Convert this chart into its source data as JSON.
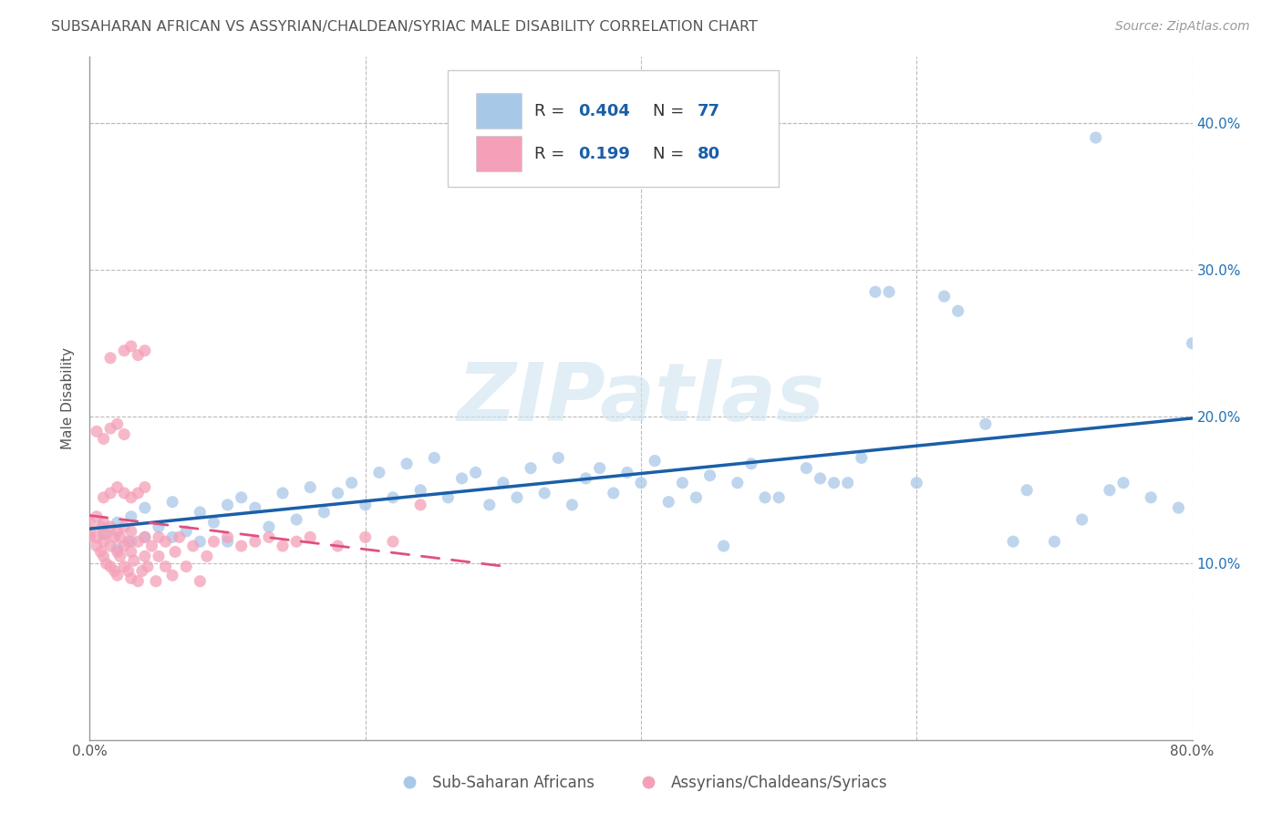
{
  "title": "SUBSAHARAN AFRICAN VS ASSYRIAN/CHALDEAN/SYRIAC MALE DISABILITY CORRELATION CHART",
  "source": "Source: ZipAtlas.com",
  "ylabel": "Male Disability",
  "xlim": [
    0.0,
    0.8
  ],
  "ylim": [
    -0.02,
    0.445
  ],
  "blue_color": "#a8c8e8",
  "pink_color": "#f4a0b8",
  "blue_line_color": "#1a5fa8",
  "pink_line_color": "#e05080",
  "R_blue": 0.404,
  "N_blue": 77,
  "R_pink": 0.199,
  "N_pink": 80,
  "legend_label_blue": "Sub-Saharan Africans",
  "legend_label_pink": "Assyrians/Chaldeans/Syriacs",
  "watermark_text": "ZIPatlas",
  "title_color": "#555555",
  "axis_label_color": "#2171b5",
  "blue_x": [
    0.01,
    0.02,
    0.02,
    0.03,
    0.03,
    0.04,
    0.04,
    0.05,
    0.06,
    0.06,
    0.07,
    0.08,
    0.08,
    0.09,
    0.1,
    0.1,
    0.11,
    0.12,
    0.13,
    0.14,
    0.15,
    0.16,
    0.17,
    0.18,
    0.19,
    0.2,
    0.21,
    0.22,
    0.23,
    0.24,
    0.25,
    0.26,
    0.27,
    0.28,
    0.29,
    0.3,
    0.31,
    0.32,
    0.33,
    0.34,
    0.35,
    0.36,
    0.37,
    0.38,
    0.39,
    0.4,
    0.41,
    0.42,
    0.43,
    0.44,
    0.45,
    0.46,
    0.47,
    0.48,
    0.49,
    0.5,
    0.52,
    0.53,
    0.54,
    0.55,
    0.56,
    0.57,
    0.58,
    0.6,
    0.62,
    0.63,
    0.65,
    0.67,
    0.68,
    0.7,
    0.72,
    0.74,
    0.75,
    0.77,
    0.79,
    0.8,
    0.73
  ],
  "blue_y": [
    0.12,
    0.11,
    0.128,
    0.115,
    0.132,
    0.118,
    0.138,
    0.125,
    0.118,
    0.142,
    0.122,
    0.135,
    0.115,
    0.128,
    0.14,
    0.115,
    0.145,
    0.138,
    0.125,
    0.148,
    0.13,
    0.152,
    0.135,
    0.148,
    0.155,
    0.14,
    0.162,
    0.145,
    0.168,
    0.15,
    0.172,
    0.145,
    0.158,
    0.162,
    0.14,
    0.155,
    0.145,
    0.165,
    0.148,
    0.172,
    0.14,
    0.158,
    0.165,
    0.148,
    0.162,
    0.155,
    0.17,
    0.142,
    0.155,
    0.145,
    0.16,
    0.112,
    0.155,
    0.168,
    0.145,
    0.145,
    0.165,
    0.158,
    0.155,
    0.155,
    0.172,
    0.285,
    0.285,
    0.155,
    0.282,
    0.272,
    0.195,
    0.115,
    0.15,
    0.115,
    0.13,
    0.15,
    0.155,
    0.145,
    0.138,
    0.25,
    0.39
  ],
  "pink_x": [
    0.0,
    0.0,
    0.0,
    0.005,
    0.005,
    0.005,
    0.008,
    0.008,
    0.01,
    0.01,
    0.01,
    0.012,
    0.012,
    0.015,
    0.015,
    0.015,
    0.018,
    0.018,
    0.02,
    0.02,
    0.02,
    0.022,
    0.022,
    0.025,
    0.025,
    0.025,
    0.028,
    0.028,
    0.03,
    0.03,
    0.03,
    0.032,
    0.035,
    0.035,
    0.038,
    0.04,
    0.04,
    0.042,
    0.045,
    0.048,
    0.05,
    0.05,
    0.055,
    0.055,
    0.06,
    0.062,
    0.065,
    0.07,
    0.075,
    0.08,
    0.085,
    0.09,
    0.1,
    0.11,
    0.12,
    0.13,
    0.14,
    0.15,
    0.16,
    0.18,
    0.2,
    0.22,
    0.24,
    0.01,
    0.015,
    0.02,
    0.025,
    0.03,
    0.035,
    0.04,
    0.005,
    0.01,
    0.015,
    0.02,
    0.025,
    0.015,
    0.025,
    0.03,
    0.035,
    0.04
  ],
  "pink_y": [
    0.118,
    0.122,
    0.128,
    0.112,
    0.118,
    0.132,
    0.108,
    0.125,
    0.105,
    0.115,
    0.128,
    0.1,
    0.12,
    0.098,
    0.112,
    0.125,
    0.095,
    0.118,
    0.092,
    0.108,
    0.122,
    0.105,
    0.118,
    0.098,
    0.112,
    0.125,
    0.095,
    0.115,
    0.09,
    0.108,
    0.122,
    0.102,
    0.088,
    0.115,
    0.095,
    0.118,
    0.105,
    0.098,
    0.112,
    0.088,
    0.118,
    0.105,
    0.098,
    0.115,
    0.092,
    0.108,
    0.118,
    0.098,
    0.112,
    0.088,
    0.105,
    0.115,
    0.118,
    0.112,
    0.115,
    0.118,
    0.112,
    0.115,
    0.118,
    0.112,
    0.118,
    0.115,
    0.14,
    0.145,
    0.148,
    0.152,
    0.148,
    0.145,
    0.148,
    0.152,
    0.19,
    0.185,
    0.192,
    0.195,
    0.188,
    0.24,
    0.245,
    0.248,
    0.242,
    0.245
  ]
}
